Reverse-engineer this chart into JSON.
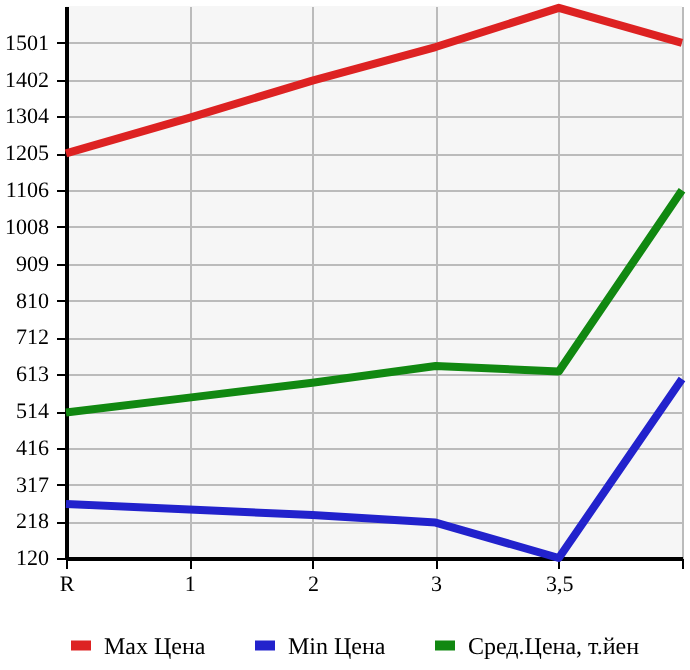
{
  "chart_data": {
    "type": "line",
    "categories": [
      "R",
      "1",
      "2",
      "3",
      "3,5",
      null
    ],
    "series": [
      {
        "name": "Max Цена",
        "color": "#dd2222",
        "values": [
          1205,
          1300,
          1400,
          1490,
          1595,
          1501
        ]
      },
      {
        "name": "Min Цена",
        "color": "#2222cc",
        "values": [
          265,
          250,
          235,
          215,
          120,
          600
        ]
      },
      {
        "name": "Сред.Цена, т.йен",
        "color": "#118811",
        "values": [
          510,
          550,
          590,
          635,
          620,
          1106
        ]
      }
    ],
    "ylim": [
      120,
      1600
    ],
    "yticks": [
      120,
      218,
      317,
      416,
      514,
      613,
      712,
      810,
      909,
      1008,
      1106,
      1205,
      1304,
      1402,
      1501
    ],
    "grid": true,
    "legend": "bottom",
    "marker": "none",
    "line_style": "solid"
  }
}
